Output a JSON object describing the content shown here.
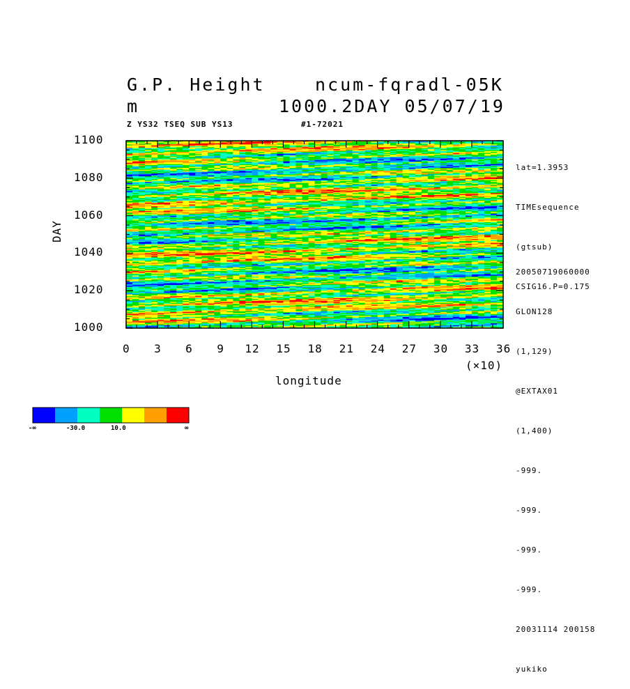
{
  "header": {
    "title_left": "G.P. Height",
    "title_right": "ncum-fqradl-05K",
    "unit": "m",
    "subtitle_right": "1000.2DAY 05/07/19",
    "info_left": "Z YS32 TSEQ SUB YS13",
    "info_mid": "#1-72021"
  },
  "side_info": {
    "top": [
      "lat=1.3953",
      "TIMEsequence",
      "(gtsub)",
      "CSIG16.P=0.175"
    ],
    "bottom": [
      "20050719060000",
      "GLON128",
      "(1,129)",
      "@EXTAX01",
      "(1,400)",
      "-999.",
      "-999.",
      "-999.",
      "-999.",
      "20031114 200158",
      "yukiko"
    ]
  },
  "colorbar": {
    "colors": [
      "#0000ff",
      "#00a0ff",
      "#00ffc0",
      "#00e000",
      "#ffff00",
      "#ffa000",
      "#ff0000"
    ],
    "labels": [
      "-∞",
      "-30.0",
      "10.0",
      "∞"
    ]
  },
  "chart_data": {
    "type": "heatmap",
    "xlabel": "longitude",
    "ylabel": "DAY",
    "x_multiplier_label": "(×10)",
    "xlim": [
      0,
      36
    ],
    "ylim": [
      1000,
      1100
    ],
    "x_ticks": [
      "0",
      "3",
      "6",
      "9",
      "12",
      "15",
      "18",
      "21",
      "24",
      "27",
      "30",
      "33",
      "36"
    ],
    "y_ticks": [
      "1000",
      "1020",
      "1040",
      "1060",
      "1080",
      "1100"
    ],
    "colors": [
      "#0000ff",
      "#00a0ff",
      "#00ffc0",
      "#00e000",
      "#ffff00",
      "#ffa000",
      "#ff0000"
    ]
  }
}
